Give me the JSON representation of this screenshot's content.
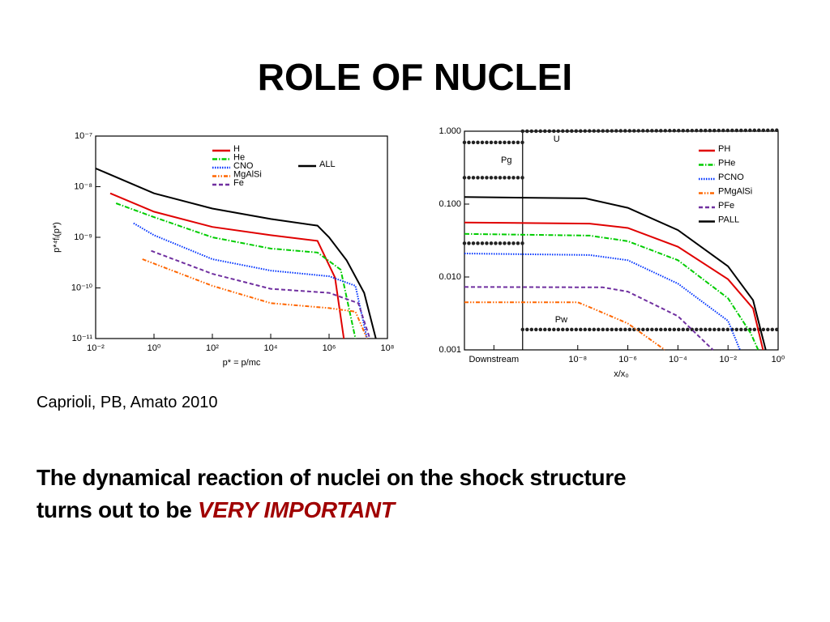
{
  "title": "ROLE OF NUCLEI",
  "citation": "Caprioli, PB, Amato 2010",
  "text": {
    "line1": "The dynamical reaction of nuclei on the shock structure",
    "line2": "turns out to be",
    "emphasis": "VERY IMPORTANT"
  },
  "chart_data": [
    {
      "type": "line",
      "log_x": true,
      "log_y": true,
      "xlabel": "p* = p/mc",
      "ylabel": "p*⁴fᵢ(p*)",
      "xlim": [
        0.01,
        100000000
      ],
      "ylim": [
        1e-11,
        1e-07
      ],
      "xticks": [
        {
          "value": 0.01,
          "label": "10⁻²"
        },
        {
          "value": 1,
          "label": "10⁰"
        },
        {
          "value": 100,
          "label": "10²"
        },
        {
          "value": 10000,
          "label": "10⁴"
        },
        {
          "value": 1000000,
          "label": "10⁶"
        },
        {
          "value": 100000000,
          "label": "10⁸"
        }
      ],
      "yticks": [
        {
          "value": 1e-11,
          "label": "10⁻¹¹"
        },
        {
          "value": 1e-10,
          "label": "10⁻¹⁰"
        },
        {
          "value": 1e-09,
          "label": "10⁻⁹"
        },
        {
          "value": 1e-08,
          "label": "10⁻⁸"
        },
        {
          "value": 1e-07,
          "label": "10⁻⁷"
        }
      ],
      "series": [
        {
          "name": "H",
          "color": "#e00000",
          "dash": "solid",
          "x": [
            0.0316,
            1,
            100,
            10000,
            400000,
            1600000,
            3200000
          ],
          "values": [
            7.4e-09,
            3.2e-09,
            1.6e-09,
            1.1e-09,
            8.5e-10,
            1.6e-10,
            1e-11
          ]
        },
        {
          "name": "He",
          "color": "#00cc00",
          "dash": "dashdot",
          "x": [
            0.05,
            1,
            100,
            10000,
            400000,
            2500000,
            8000000
          ],
          "values": [
            4.7e-09,
            2.5e-09,
            1e-09,
            6e-10,
            5e-10,
            2.3e-10,
            1e-11
          ]
        },
        {
          "name": "CNO",
          "color": "#0033ff",
          "dash": "dotted",
          "x": [
            0.2,
            1,
            100,
            10000,
            1000000,
            8000000,
            20000000
          ],
          "values": [
            1.9e-09,
            1.1e-09,
            3.7e-10,
            2.2e-10,
            1.7e-10,
            1.1e-10,
            1e-11
          ]
        },
        {
          "name": "MgAlSi",
          "color": "#ff6600",
          "dash": "dashdotdot",
          "x": [
            0.4,
            100,
            10000,
            1000000,
            8000000,
            20000000
          ],
          "values": [
            3.7e-10,
            1.1e-10,
            5e-11,
            4e-11,
            3.4e-11,
            1e-11
          ]
        },
        {
          "name": "Fe",
          "color": "#7030a0",
          "dash": "dashed",
          "x": [
            0.8,
            100,
            10000,
            1000000,
            10000000,
            25000000
          ],
          "values": [
            5.4e-10,
            1.9e-10,
            9.6e-11,
            8e-11,
            5e-11,
            1e-11
          ]
        },
        {
          "name": "ALL",
          "color": "#000000",
          "dash": "solid",
          "x": [
            0.01,
            1,
            100,
            10000,
            400000,
            1000000,
            4000000,
            16000000,
            40000000
          ],
          "values": [
            2.3e-08,
            7.4e-09,
            3.7e-09,
            2.3e-09,
            1.7e-09,
            1e-09,
            3.5e-10,
            8e-11,
            1e-11
          ]
        }
      ]
    },
    {
      "type": "line",
      "log_x": true,
      "log_y": true,
      "xlabel": "x/x₀",
      "xlim": [
        3e-13,
        1
      ],
      "ylim": [
        0.001,
        1
      ],
      "xticks": [
        {
          "value": 4.5e-12,
          "label": "Downstream"
        },
        {
          "value": 1e-08,
          "label": "10⁻⁸"
        },
        {
          "value": 1e-06,
          "label": "10⁻⁶"
        },
        {
          "value": 0.0001,
          "label": "10⁻⁴"
        },
        {
          "value": 0.01,
          "label": "10⁻²"
        },
        {
          "value": 1,
          "label": "10⁰"
        }
      ],
      "yticks": [
        {
          "value": 0.001,
          "label": "0.001"
        },
        {
          "value": 0.01,
          "label": "0.010"
        },
        {
          "value": 0.1,
          "label": "0.100"
        },
        {
          "value": 1,
          "label": "1.000"
        }
      ],
      "series": [
        {
          "name": "PH",
          "color": "#e00000",
          "dash": "solid",
          "x": [
            3e-13,
            3e-08,
            1e-06,
            0.0001,
            0.01,
            0.1,
            0.25
          ],
          "values": [
            0.056,
            0.054,
            0.047,
            0.026,
            0.0093,
            0.0037,
            0.001
          ]
        },
        {
          "name": "PHe",
          "color": "#00cc00",
          "dash": "dashdot",
          "x": [
            3e-13,
            3e-08,
            1e-06,
            0.0001,
            0.01,
            0.08,
            0.16
          ],
          "values": [
            0.039,
            0.037,
            0.031,
            0.017,
            0.0051,
            0.0017,
            0.001
          ]
        },
        {
          "name": "PCNO",
          "color": "#0033ff",
          "dash": "dotted",
          "x": [
            3e-13,
            3e-08,
            1e-06,
            0.0001,
            0.01,
            0.03
          ],
          "values": [
            0.021,
            0.02,
            0.017,
            0.0081,
            0.0025,
            0.001
          ]
        },
        {
          "name": "PMgAlSi",
          "color": "#ff6600",
          "dash": "dashdotdot",
          "x": [
            3e-13,
            1e-08,
            4e-08,
            1e-06,
            3e-05
          ],
          "values": [
            0.0045,
            0.0045,
            0.0037,
            0.0023,
            0.001
          ]
        },
        {
          "name": "PFe",
          "color": "#7030a0",
          "dash": "dashed",
          "x": [
            3e-13,
            1e-07,
            1e-06,
            0.0001,
            0.0025
          ],
          "values": [
            0.0073,
            0.0072,
            0.0063,
            0.0029,
            0.001
          ]
        },
        {
          "name": "PALL",
          "color": "#000000",
          "dash": "solid",
          "x": [
            3e-13,
            2e-08,
            1e-06,
            0.0001,
            0.01,
            0.1,
            0.32
          ],
          "values": [
            0.125,
            0.12,
            0.089,
            0.044,
            0.014,
            0.0048,
            0.001
          ]
        }
      ],
      "markers": [
        {
          "label": "U",
          "x": [
            6.3e-11,
            1
          ],
          "values": [
            1.0,
            1.03
          ]
        },
        {
          "label": "Pg",
          "x": [
            3e-13,
            6.3e-11
          ],
          "values": [
            0.7,
            0.7
          ]
        },
        {
          "x": [
            3e-13,
            6.3e-11
          ],
          "values": [
            0.23,
            0.23
          ]
        },
        {
          "x": [
            3e-13,
            6.3e-11
          ],
          "values": [
            0.029,
            0.029
          ]
        },
        {
          "label": "Pw",
          "x": [
            6.3e-11,
            1
          ],
          "values": [
            0.0019,
            0.0019
          ]
        }
      ]
    }
  ]
}
